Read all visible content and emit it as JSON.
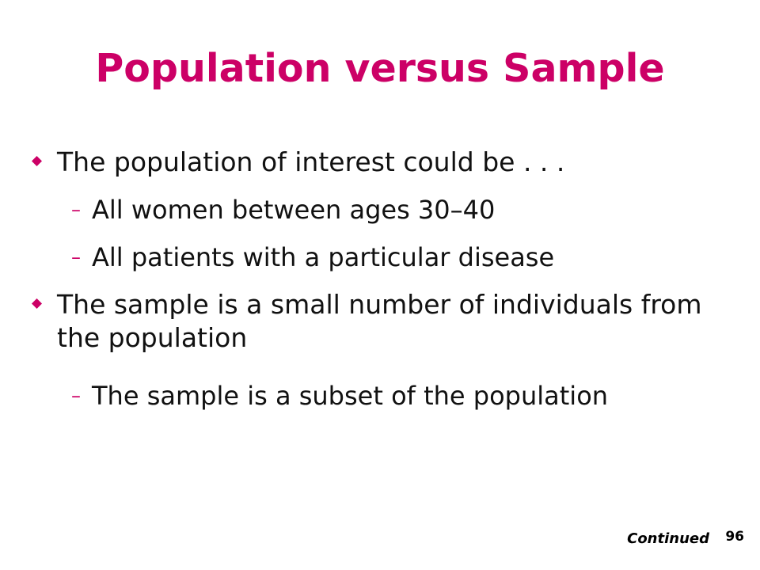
{
  "slide": {
    "title": "Population versus Sample",
    "bullets": [
      {
        "text": "The population of interest could be . . .",
        "sub": [
          "All women between ages 30–40",
          "All patients with a particular disease"
        ]
      },
      {
        "text": "The sample is a small number of individuals from the population",
        "sub": [
          "The sample is a subset of the population"
        ]
      }
    ],
    "sub_marker": "–",
    "footer": {
      "continued": "Continued",
      "page_number": "96"
    }
  },
  "colors": {
    "title": "#cc0066",
    "bullet_marker": "#cc0066",
    "text": "#111111"
  }
}
